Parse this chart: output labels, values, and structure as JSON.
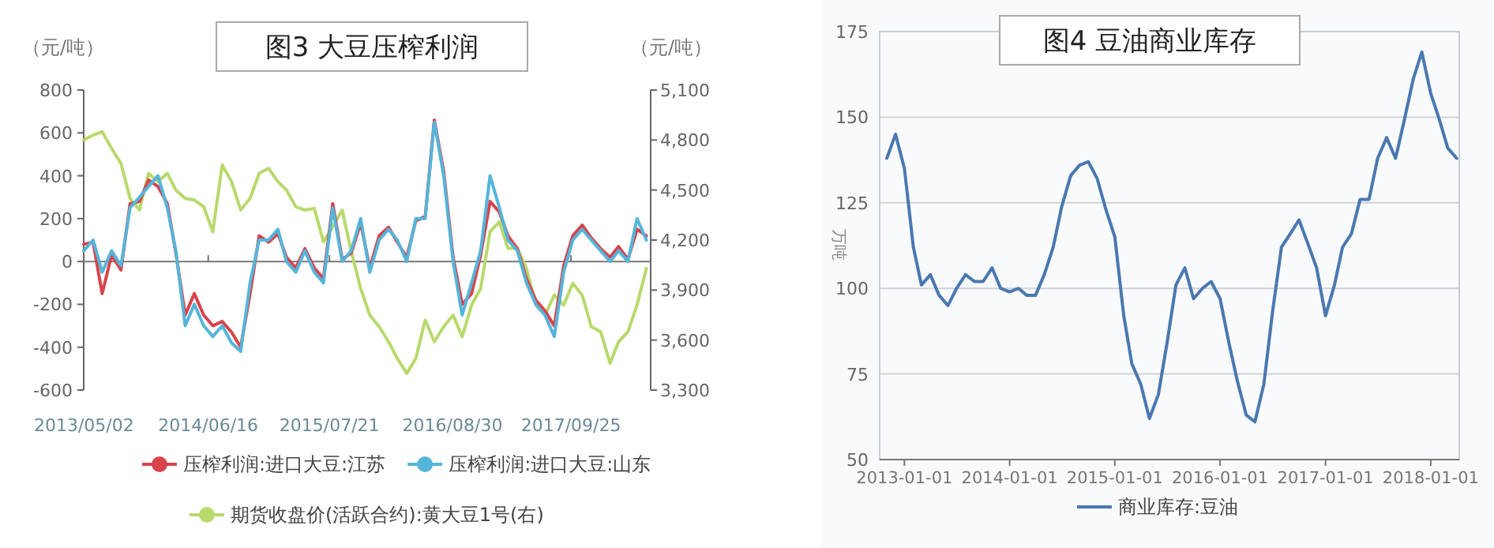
{
  "chart_data": [
    {
      "type": "line",
      "title": "图3 大豆压榨利润",
      "ylabel": "（元/吨）",
      "y2label": "（元/吨）",
      "x": [
        "2013-05",
        "2013-06",
        "2013-07",
        "2013-08",
        "2013-09",
        "2013-10",
        "2013-11",
        "2013-12",
        "2014-01",
        "2014-02",
        "2014-03",
        "2014-04",
        "2014-05",
        "2014-06",
        "2014-07",
        "2014-08",
        "2014-09",
        "2014-10",
        "2014-11",
        "2014-12",
        "2015-01",
        "2015-02",
        "2015-03",
        "2015-04",
        "2015-05",
        "2015-06",
        "2015-07",
        "2015-08",
        "2015-09",
        "2015-10",
        "2015-11",
        "2015-12",
        "2016-01",
        "2016-02",
        "2016-03",
        "2016-04",
        "2016-05",
        "2016-06",
        "2016-07",
        "2016-08",
        "2016-09",
        "2016-10",
        "2016-11",
        "2016-12",
        "2017-01",
        "2017-02",
        "2017-03",
        "2017-04",
        "2017-05",
        "2017-06",
        "2017-07",
        "2017-08",
        "2017-09",
        "2017-10",
        "2017-11",
        "2017-12",
        "2018-01",
        "2018-02",
        "2018-03",
        "2018-04",
        "2018-05",
        "2018-06"
      ],
      "xlim": [
        "2013-05-01",
        "2018-06-15"
      ],
      "xticks": [
        {
          "value": "2013-05-02",
          "label": "2013/05/02"
        },
        {
          "value": "2014-06-16",
          "label": "2014/06/16"
        },
        {
          "value": "2015-07-21",
          "label": "2015/07/21"
        },
        {
          "value": "2016-08-30",
          "label": "2016/08/30"
        },
        {
          "value": "2017-09-25",
          "label": "2017/09/25"
        }
      ],
      "ylim": [
        -600,
        800
      ],
      "yticks": [
        -600,
        -400,
        -200,
        0,
        200,
        400,
        600,
        800
      ],
      "y2lim": [
        3300,
        5100
      ],
      "y2ticks": [
        {
          "value": 3300,
          "label": "3,300"
        },
        {
          "value": 3600,
          "label": "3,600"
        },
        {
          "value": 3900,
          "label": "3,900"
        },
        {
          "value": 4200,
          "label": "4,200"
        },
        {
          "value": 4500,
          "label": "4,500"
        },
        {
          "value": 4800,
          "label": "4,800"
        },
        {
          "value": 5100,
          "label": "5,100"
        }
      ],
      "legend": "bottom",
      "series": [
        {
          "name": "期货收盘价(活跃合约):黄大豆1号(右)",
          "color": "#b8d96c",
          "axis": "y2",
          "values": [
            4800,
            4830,
            4850,
            4750,
            4660,
            4450,
            4380,
            4600,
            4550,
            4600,
            4500,
            4450,
            4440,
            4400,
            4250,
            4650,
            4550,
            4380,
            4450,
            4600,
            4630,
            4550,
            4500,
            4400,
            4380,
            4390,
            4190,
            4280,
            4380,
            4130,
            3910,
            3750,
            3680,
            3590,
            3490,
            3400,
            3490,
            3720,
            3590,
            3680,
            3750,
            3620,
            3810,
            3910,
            4250,
            4310,
            4150,
            4150,
            4030,
            3810,
            3750,
            3870,
            3810,
            3940,
            3870,
            3680,
            3650,
            3460,
            3590,
            3650,
            3810,
            4030
          ]
        },
        {
          "name": "压榨利润:进口大豆:江苏",
          "color": "#d8434c",
          "values": [
            80,
            90,
            -150,
            30,
            -40,
            270,
            280,
            380,
            350,
            270,
            40,
            -250,
            -150,
            -250,
            -300,
            -280,
            -330,
            -400,
            -150,
            120,
            90,
            130,
            20,
            -30,
            60,
            -30,
            -80,
            270,
            10,
            40,
            180,
            -30,
            120,
            160,
            90,
            20,
            190,
            210,
            660,
            420,
            20,
            -200,
            -150,
            30,
            280,
            230,
            120,
            60,
            -80,
            -180,
            -230,
            -300,
            -20,
            120,
            170,
            110,
            60,
            20,
            70,
            10,
            150,
            120
          ]
        },
        {
          "name": "压榨利润:进口大豆:山东",
          "color": "#55b5d9",
          "values": [
            50,
            100,
            -50,
            50,
            -20,
            250,
            300,
            350,
            400,
            250,
            50,
            -300,
            -200,
            -300,
            -350,
            -300,
            -380,
            -420,
            -100,
            100,
            100,
            150,
            0,
            -50,
            50,
            -50,
            -100,
            250,
            0,
            50,
            200,
            -50,
            100,
            150,
            100,
            0,
            200,
            200,
            650,
            400,
            0,
            -250,
            -100,
            50,
            400,
            250,
            100,
            50,
            -100,
            -200,
            -250,
            -350,
            -50,
            100,
            150,
            100,
            50,
            0,
            50,
            0,
            200,
            100
          ]
        }
      ]
    },
    {
      "type": "line",
      "title": "图4 豆油商业库存",
      "ylabel": "万吨",
      "x": [
        "2012-11",
        "2012-12",
        "2013-01",
        "2013-02",
        "2013-03",
        "2013-04",
        "2013-05",
        "2013-06",
        "2013-07",
        "2013-08",
        "2013-09",
        "2013-10",
        "2013-11",
        "2013-12",
        "2014-01",
        "2014-02",
        "2014-03",
        "2014-04",
        "2014-05",
        "2014-06",
        "2014-07",
        "2014-08",
        "2014-09",
        "2014-10",
        "2014-11",
        "2014-12",
        "2015-01",
        "2015-02",
        "2015-03",
        "2015-04",
        "2015-05",
        "2015-06",
        "2015-07",
        "2015-08",
        "2015-09",
        "2015-10",
        "2015-11",
        "2015-12",
        "2016-01",
        "2016-02",
        "2016-03",
        "2016-04",
        "2016-05",
        "2016-06",
        "2016-07",
        "2016-08",
        "2016-09",
        "2016-10",
        "2016-11",
        "2016-12",
        "2017-01",
        "2017-02",
        "2017-03",
        "2017-04",
        "2017-05",
        "2017-06",
        "2017-07",
        "2017-08",
        "2017-09",
        "2017-10",
        "2017-11",
        "2017-12",
        "2018-01",
        "2018-02",
        "2018-03",
        "2018-04"
      ],
      "xlim": [
        "2012-10-07",
        "2018-04-10"
      ],
      "xticks": [
        "2013-01-01",
        "2014-01-01",
        "2015-01-01",
        "2016-01-01",
        "2017-01-01",
        "2018-01-01"
      ],
      "ylim": [
        50,
        175
      ],
      "yticks": [
        50,
        75,
        100,
        125,
        150,
        175
      ],
      "grid": "y",
      "legend": "bottom",
      "series": [
        {
          "name": "商业库存:豆油",
          "color": "#4a78b0",
          "values": [
            138,
            145,
            135,
            112,
            101,
            104,
            98,
            95,
            100,
            104,
            102,
            102,
            106,
            100,
            99,
            100,
            98,
            98,
            104,
            112,
            124,
            133,
            136,
            137,
            132,
            123,
            115,
            92,
            78,
            72,
            62,
            69,
            84,
            101,
            106,
            97,
            100,
            102,
            97,
            84,
            73,
            63,
            61,
            72,
            93,
            112,
            116,
            120,
            113,
            106,
            92,
            101,
            112,
            116,
            126,
            126,
            138,
            144,
            138,
            149,
            161,
            169,
            157,
            149,
            141,
            138
          ]
        }
      ]
    }
  ]
}
